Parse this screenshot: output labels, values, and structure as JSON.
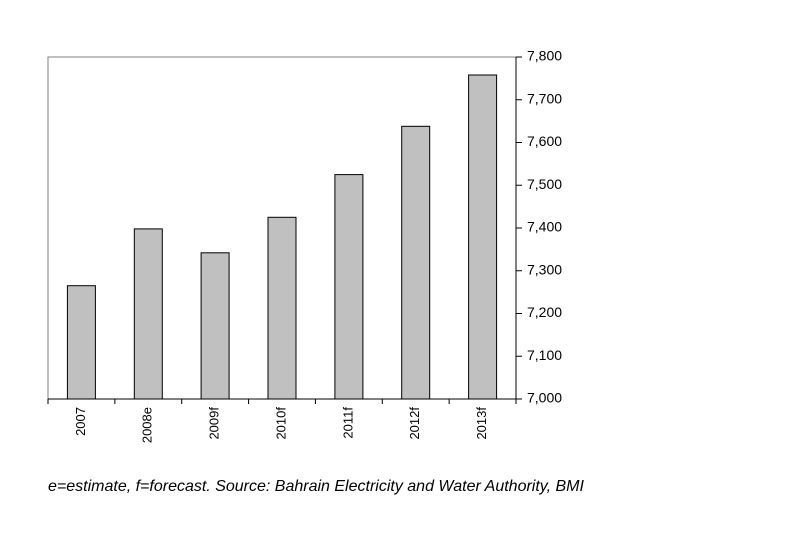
{
  "chart_data": {
    "type": "bar",
    "categories": [
      "2007",
      "2008e",
      "2009f",
      "2010f",
      "2011f",
      "2012f",
      "2013f"
    ],
    "values": [
      7265,
      7398,
      7342,
      7425,
      7525,
      7638,
      7758
    ],
    "title": "",
    "xlabel": "",
    "ylabel": "",
    "ylim": [
      7000,
      7800
    ],
    "yticks": [
      "7,000",
      "7,100",
      "7,200",
      "7,300",
      "7,400",
      "7,500",
      "7,600",
      "7,700",
      "7,800"
    ],
    "yaxis_position": "right",
    "legend": "none",
    "grid": false,
    "bar_color": "#c0c0c0",
    "bar_edge_color": "#000000",
    "plot_border_color": "#808080"
  },
  "caption": "e=estimate, f=forecast. Source: Bahrain Electricity and Water Authority, BMI"
}
